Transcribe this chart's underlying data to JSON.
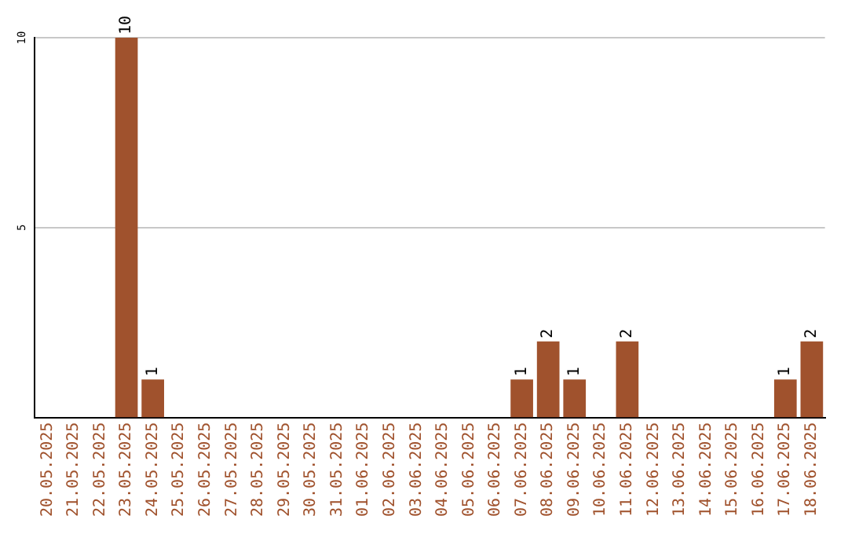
{
  "chart_data": {
    "type": "bar",
    "categories": [
      "20.05.2025",
      "21.05.2025",
      "22.05.2025",
      "23.05.2025",
      "24.05.2025",
      "25.05.2025",
      "26.05.2025",
      "27.05.2025",
      "28.05.2025",
      "29.05.2025",
      "30.05.2025",
      "31.05.2025",
      "01.06.2025",
      "02.06.2025",
      "03.06.2025",
      "04.06.2025",
      "05.06.2025",
      "06.06.2025",
      "07.06.2025",
      "08.06.2025",
      "09.06.2025",
      "10.06.2025",
      "11.06.2025",
      "12.06.2025",
      "13.06.2025",
      "14.06.2025",
      "15.06.2025",
      "16.06.2025",
      "17.06.2025",
      "18.06.2025"
    ],
    "values": [
      0,
      0,
      0,
      10,
      1,
      0,
      0,
      0,
      0,
      0,
      0,
      0,
      0,
      0,
      0,
      0,
      0,
      0,
      1,
      2,
      1,
      0,
      2,
      0,
      0,
      0,
      0,
      0,
      1,
      2
    ],
    "value_labels": [
      null,
      null,
      null,
      "10",
      "1",
      null,
      null,
      null,
      null,
      null,
      null,
      null,
      null,
      null,
      null,
      null,
      null,
      null,
      "1",
      "2",
      "1",
      null,
      "2",
      null,
      null,
      null,
      null,
      null,
      "1",
      "2"
    ],
    "color": "#a0522d",
    "ylim": [
      0,
      10
    ],
    "yticks": [
      5,
      10
    ],
    "grid": "y",
    "legend": false
  }
}
